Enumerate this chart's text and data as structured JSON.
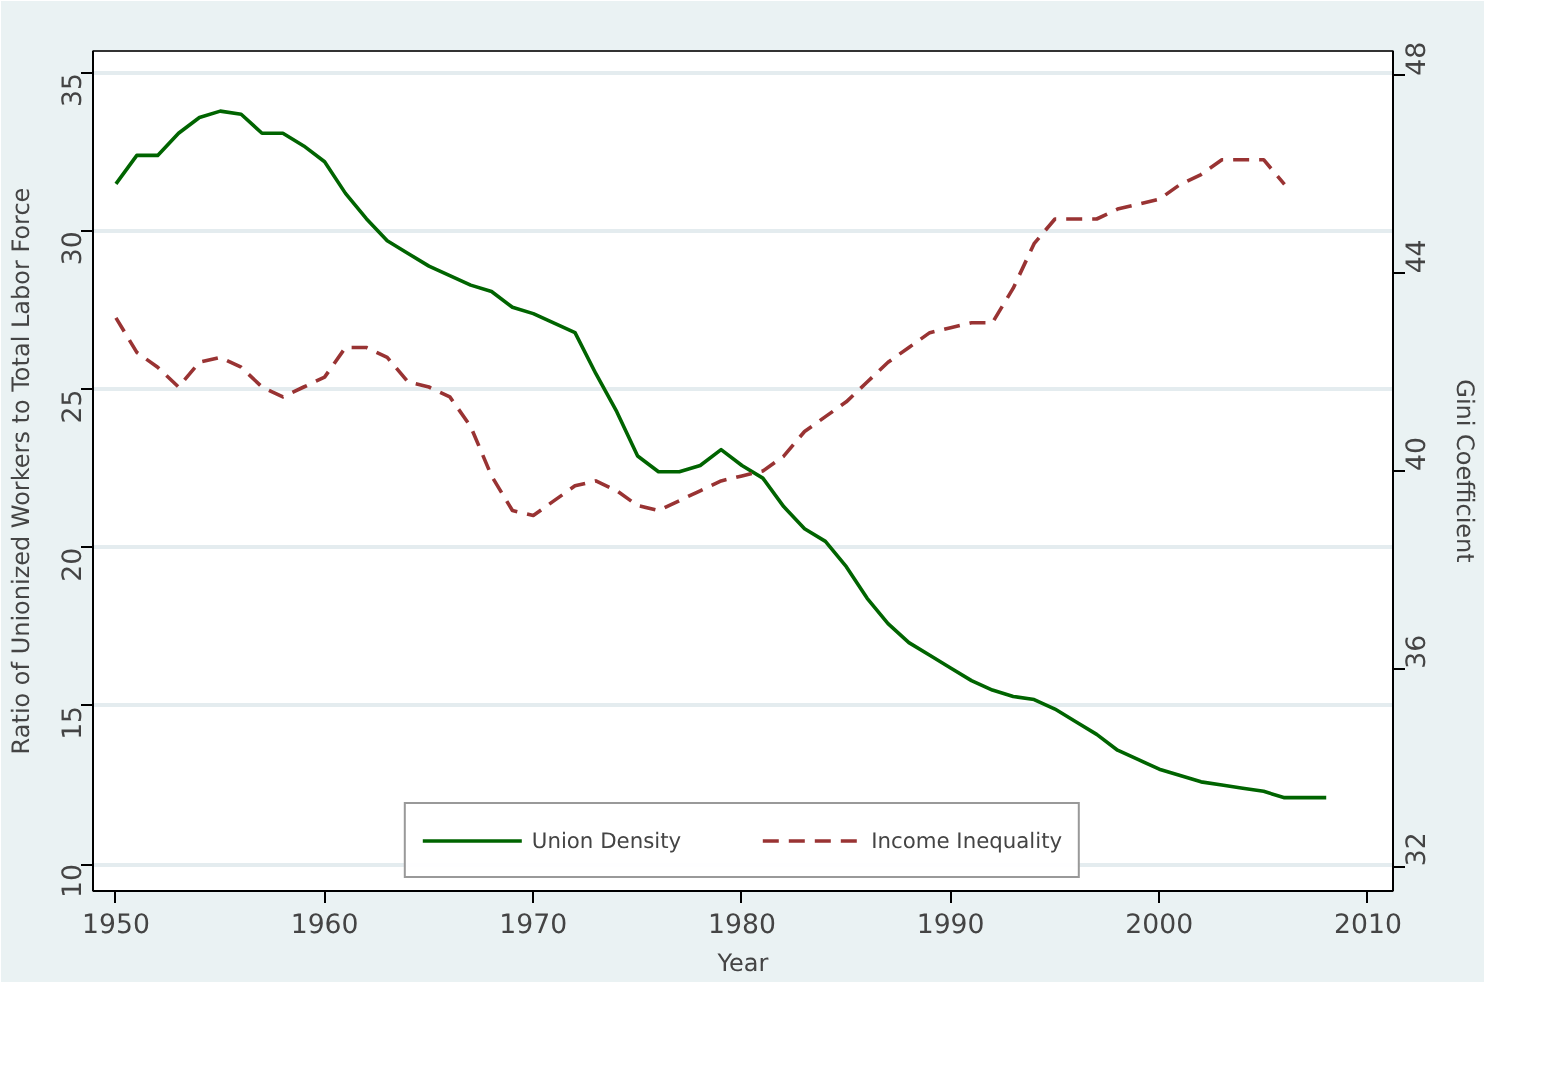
{
  "chart_data": {
    "type": "line",
    "xlabel": "Year",
    "ylabel": "Ratio of Unionized Workers to Total Labor Force",
    "y2label": "Gini Coefficient",
    "x": [
      1950,
      1951,
      1952,
      1953,
      1954,
      1955,
      1956,
      1957,
      1958,
      1959,
      1960,
      1961,
      1962,
      1963,
      1964,
      1965,
      1966,
      1967,
      1968,
      1969,
      1970,
      1971,
      1972,
      1973,
      1974,
      1975,
      1976,
      1977,
      1978,
      1979,
      1980,
      1981,
      1982,
      1983,
      1984,
      1985,
      1986,
      1987,
      1988,
      1989,
      1990,
      1991,
      1992,
      1993,
      1994,
      1995,
      1996,
      1997,
      1998,
      1999,
      2000,
      2001,
      2002,
      2003,
      2004,
      2005,
      2006,
      2007,
      2008
    ],
    "series": [
      {
        "name": "Union Density",
        "color": "#006400",
        "line_style": "solid",
        "values": [
          31.5,
          32.4,
          32.4,
          33.1,
          33.6,
          33.8,
          33.7,
          33.1,
          33.1,
          32.7,
          32.2,
          31.2,
          30.4,
          29.7,
          29.3,
          28.9,
          28.6,
          28.3,
          28.1,
          27.6,
          27.4,
          27.1,
          26.8,
          25.5,
          24.3,
          22.9,
          22.4,
          22.4,
          22.6,
          23.1,
          22.6,
          22.2,
          21.3,
          20.6,
          20.2,
          19.4,
          18.4,
          17.6,
          17.0,
          16.6,
          16.2,
          15.8,
          15.5,
          15.3,
          15.2,
          14.9,
          14.5,
          14.1,
          13.6,
          13.3,
          13.0,
          12.8,
          12.6,
          12.5,
          12.4,
          12.3,
          12.1,
          12.1,
          12.1
        ]
      },
      {
        "name": "Income Inequality",
        "color": "#993333",
        "line_style": "dashed",
        "axis": "y2",
        "values": [
          43.1,
          42.4,
          42.1,
          41.7,
          42.2,
          42.3,
          42.1,
          41.7,
          41.5,
          41.7,
          41.9,
          42.5,
          42.5,
          42.3,
          41.8,
          41.7,
          41.5,
          40.9,
          39.9,
          39.2,
          39.1,
          39.4,
          39.7,
          39.8,
          39.6,
          39.3,
          39.2,
          39.4,
          39.6,
          39.8,
          39.9,
          40.0,
          40.3,
          40.8,
          41.1,
          41.4,
          41.8,
          42.2,
          42.5,
          42.8,
          42.9,
          43.0,
          43.0,
          43.7,
          44.6,
          45.1,
          45.1,
          45.1,
          45.3,
          45.4,
          45.5,
          45.8,
          46.0,
          46.3,
          46.3,
          46.3,
          45.8,
          null,
          null
        ]
      }
    ],
    "xlim": [
      1948.9,
      2011.2
    ],
    "xticks": [
      1950,
      1960,
      1970,
      1980,
      1990,
      2000,
      2010
    ],
    "ylim": [
      9.15,
      35.7
    ],
    "yticks": [
      10,
      15,
      20,
      25,
      30,
      35
    ],
    "y2lim": [
      31.5,
      48.5
    ],
    "y2ticks": [
      32,
      36,
      40,
      44,
      48
    ],
    "grid": "y",
    "legend": "bottom"
  }
}
